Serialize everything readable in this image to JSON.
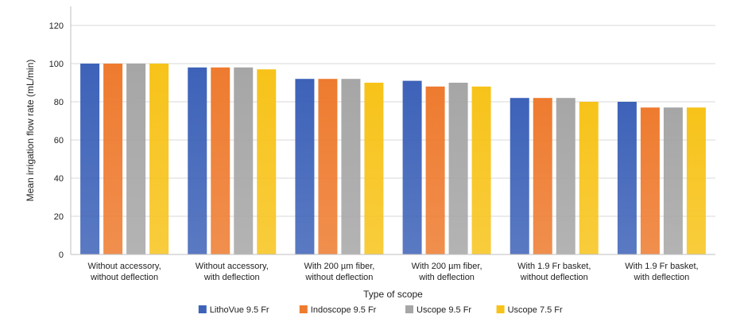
{
  "chart_data": {
    "type": "bar",
    "title": "",
    "xlabel": "Type of scope",
    "ylabel": "Mean irrigation flow rate (mL/min)",
    "ylim": [
      0,
      130
    ],
    "yticks": [
      0,
      20,
      40,
      60,
      80,
      100,
      120
    ],
    "grid": true,
    "legend_position": "bottom",
    "categories": [
      [
        "Without accessory,",
        "without deflection"
      ],
      [
        "Without accessory,",
        "with deflection"
      ],
      [
        "With 200 µm fiber,",
        "without deflection"
      ],
      [
        "With 200 µm fiber,",
        "with deflection"
      ],
      [
        "With 1.9 Fr basket,",
        "without deflection"
      ],
      [
        "With 1.9 Fr basket,",
        "with deflection"
      ]
    ],
    "series": [
      {
        "name": "LithoVue 9.5 Fr",
        "color": "#3d62b8",
        "values": [
          100,
          98,
          92,
          91,
          82,
          80
        ]
      },
      {
        "name": "Indoscope 9.5 Fr",
        "color": "#ee7b2f",
        "values": [
          100,
          98,
          92,
          88,
          82,
          77
        ]
      },
      {
        "name": "Uscope 9.5 Fr",
        "color": "#a6a6a6",
        "values": [
          100,
          98,
          92,
          90,
          82,
          77
        ]
      },
      {
        "name": "Uscope 7.5 Fr",
        "color": "#f7c31a",
        "values": [
          100,
          97,
          90,
          88,
          80,
          77
        ]
      }
    ]
  }
}
